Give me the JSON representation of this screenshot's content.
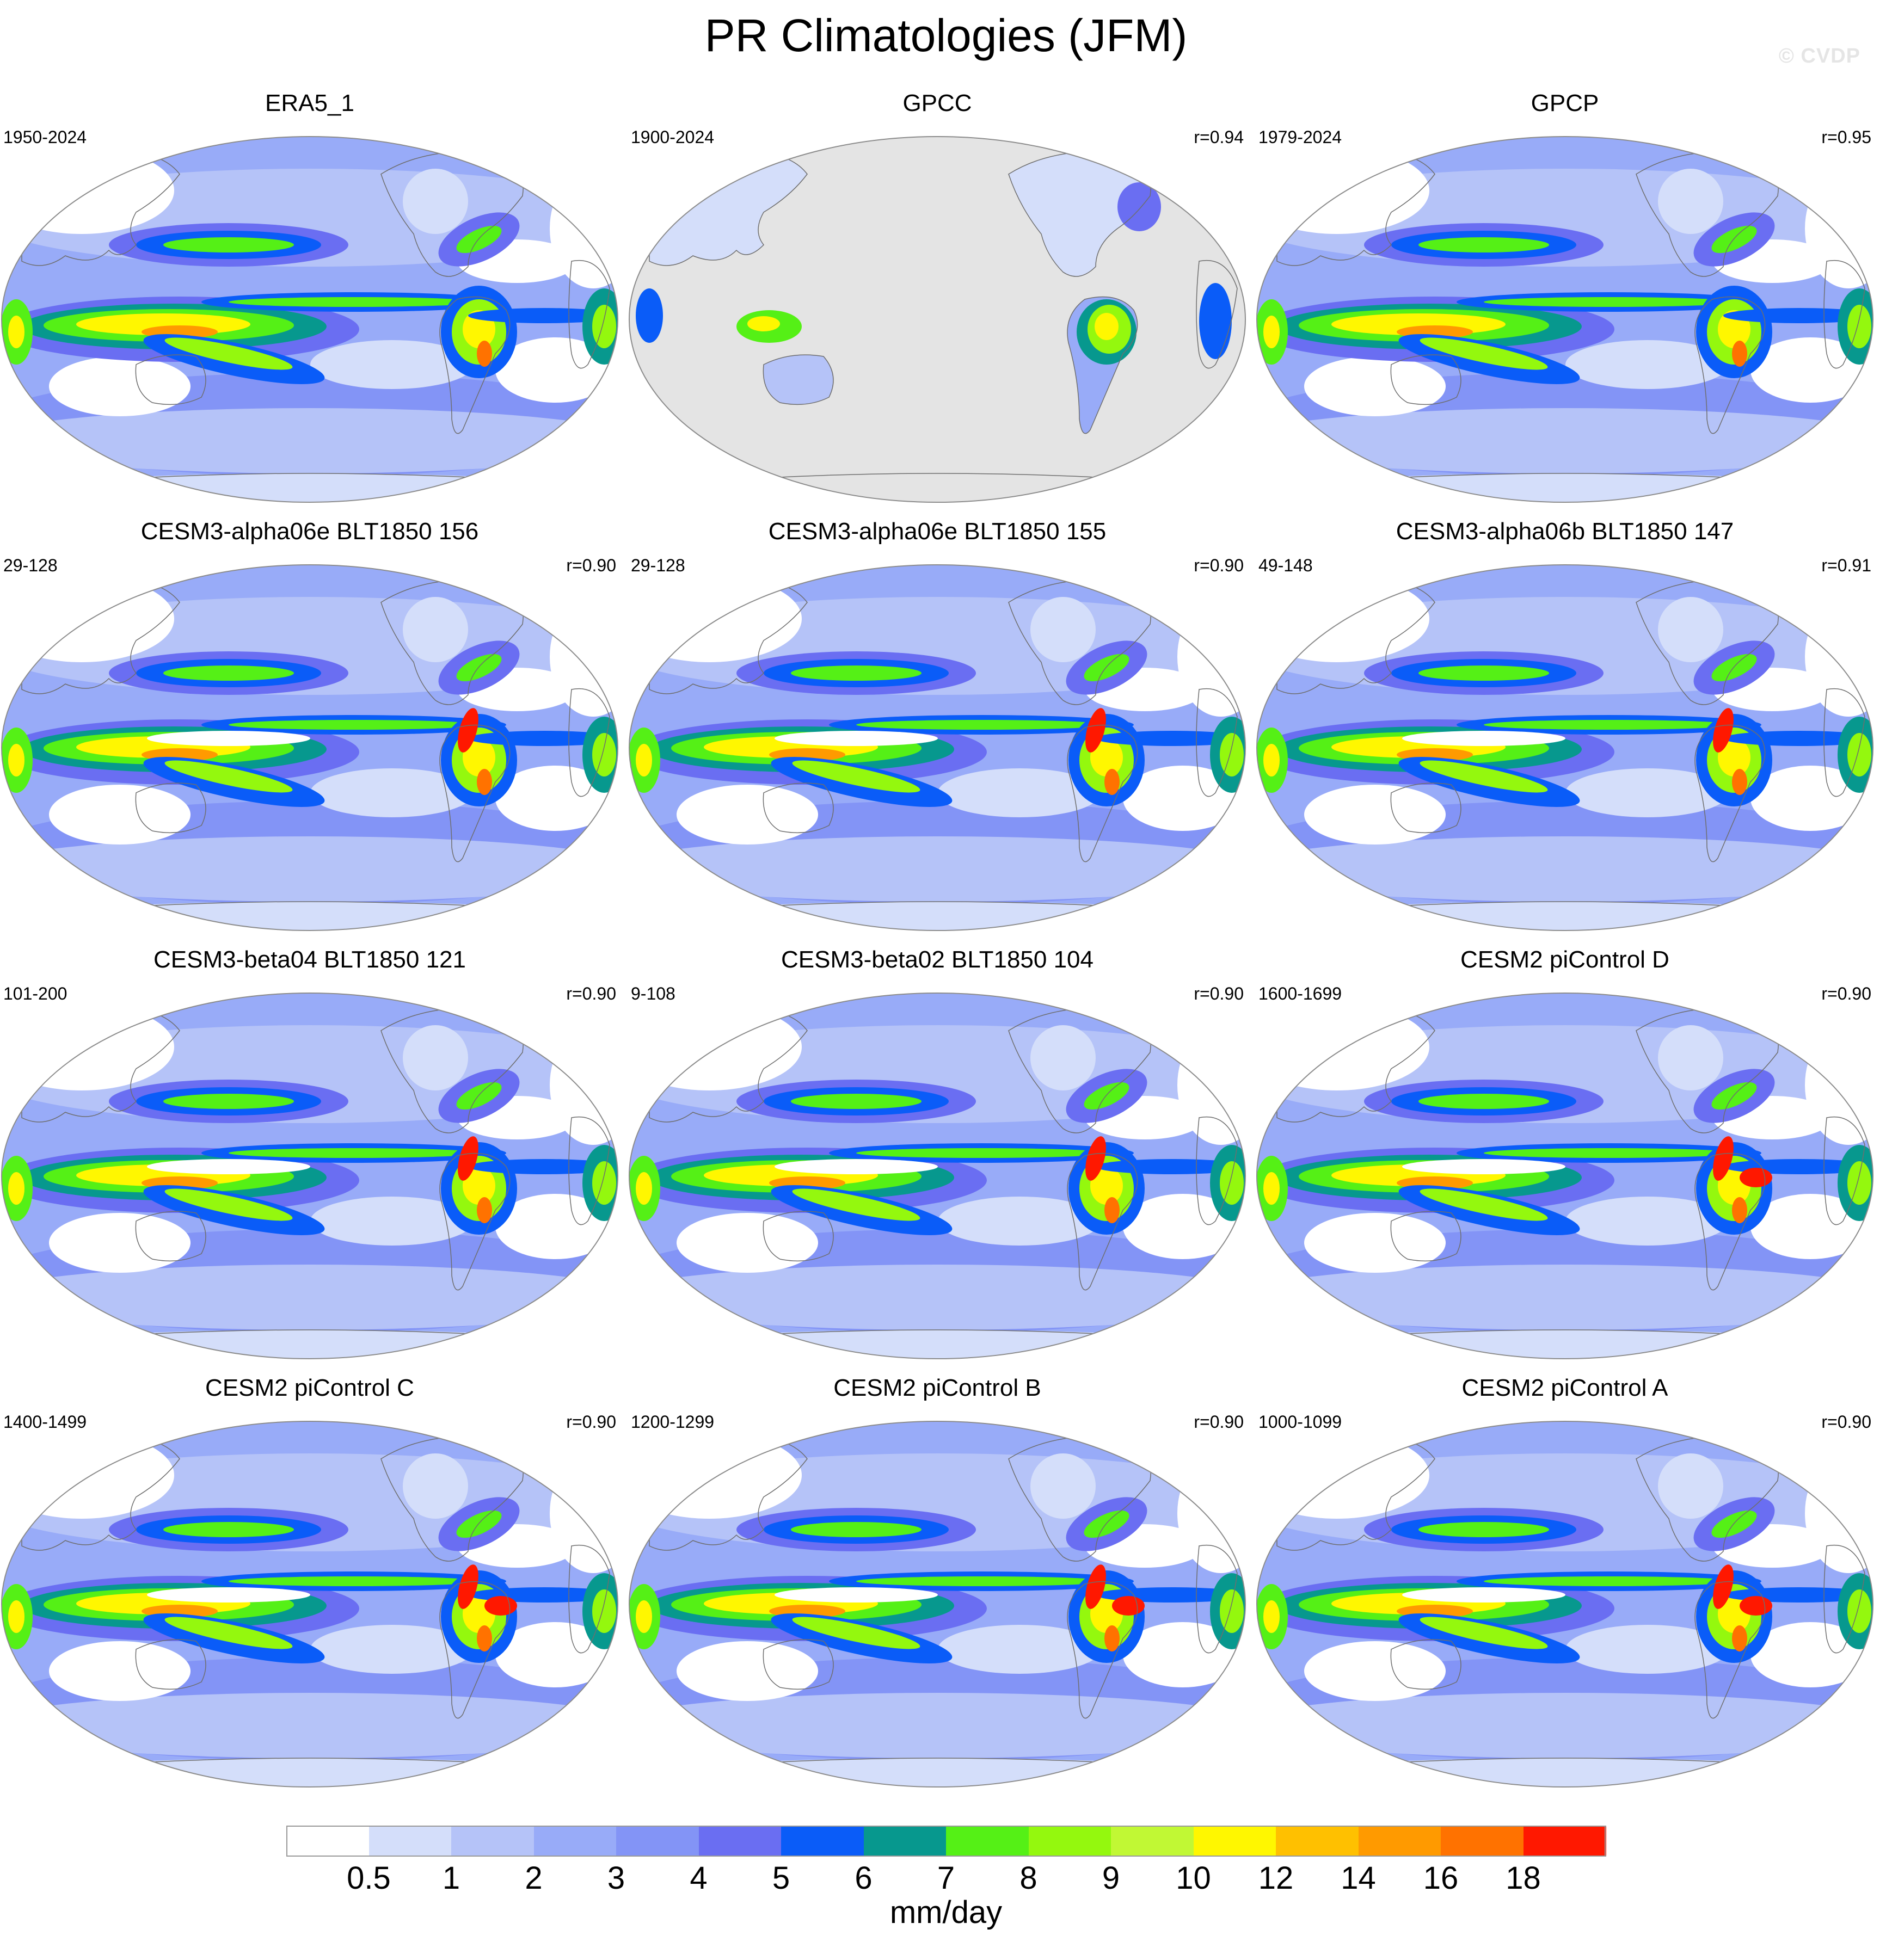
{
  "title": "PR Climatologies (JFM)",
  "watermark": "© CVDP",
  "colors": {
    "land_mask": "#e4e4e4",
    "outline": "#8c8c8c",
    "coast": "#6e6e6e"
  },
  "panels": [
    {
      "name": "ERA5_1",
      "period": "1950-2024",
      "r": "",
      "variant": "obs"
    },
    {
      "name": "GPCC",
      "period": "1900-2024",
      "r": "r=0.94",
      "variant": "land"
    },
    {
      "name": "GPCP",
      "period": "1979-2024",
      "r": "r=0.95",
      "variant": "obs"
    },
    {
      "name": "CESM3-alpha06e BLT1850 156",
      "period": "29-128",
      "r": "r=0.90",
      "variant": "model"
    },
    {
      "name": "CESM3-alpha06e BLT1850 155",
      "period": "29-128",
      "r": "r=0.90",
      "variant": "model"
    },
    {
      "name": "CESM3-alpha06b BLT1850 147",
      "period": "49-148",
      "r": "r=0.91",
      "variant": "model"
    },
    {
      "name": "CESM3-beta04 BLT1850 121",
      "period": "101-200",
      "r": "r=0.90",
      "variant": "model"
    },
    {
      "name": "CESM3-beta02 BLT1850 104",
      "period": "9-108",
      "r": "r=0.90",
      "variant": "model"
    },
    {
      "name": "CESM2 piControl D",
      "period": "1600-1699",
      "r": "r=0.90",
      "variant": "cesm2"
    },
    {
      "name": "CESM2 piControl C",
      "period": "1400-1499",
      "r": "r=0.90",
      "variant": "cesm2"
    },
    {
      "name": "CESM2 piControl B",
      "period": "1200-1299",
      "r": "r=0.90",
      "variant": "cesm2"
    },
    {
      "name": "CESM2 piControl A",
      "period": "1000-1099",
      "r": "r=0.90",
      "variant": "cesm2"
    }
  ],
  "colorbar": {
    "unit": "mm/day",
    "ticks": [
      "0.5",
      "1",
      "2",
      "3",
      "4",
      "5",
      "6",
      "7",
      "8",
      "9",
      "10",
      "12",
      "14",
      "16",
      "18"
    ],
    "colors": [
      "#ffffff",
      "#d4defa",
      "#b5c3f8",
      "#98abf8",
      "#8394f6",
      "#6a6ef2",
      "#0a5cf8",
      "#07988e",
      "#55f016",
      "#94f80e",
      "#c1f834",
      "#fff700",
      "#ffc000",
      "#ff9a00",
      "#ff7200",
      "#ff1800"
    ]
  }
}
